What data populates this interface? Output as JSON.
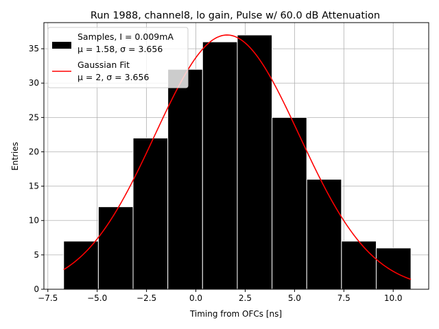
{
  "chart_data": {
    "type": "bar",
    "title": "Run 1988, channel8, lo gain, Pulse w/ 60.0 dB Attenuation",
    "xlabel": "Timing from OFCs [ns]",
    "ylabel": "Entries",
    "xlim": [
      -7.7,
      11.8
    ],
    "ylim": [
      0,
      38.8
    ],
    "grid": true,
    "x_ticks": [
      -7.5,
      -5.0,
      -2.5,
      0.0,
      2.5,
      5.0,
      7.5,
      10.0
    ],
    "x_tick_labels": [
      "−7.5",
      "−5.0",
      "−2.5",
      "0.0",
      "2.5",
      "5.0",
      "7.5",
      "10.0"
    ],
    "y_ticks": [
      0,
      5,
      10,
      15,
      20,
      25,
      30,
      35
    ],
    "y_tick_labels": [
      "0",
      "5",
      "10",
      "15",
      "20",
      "25",
      "30",
      "35"
    ],
    "bins": [
      {
        "left": -6.7,
        "right": -4.94,
        "value": 7
      },
      {
        "left": -4.94,
        "right": -3.18,
        "value": 12
      },
      {
        "left": -3.18,
        "right": -1.42,
        "value": 22
      },
      {
        "left": -1.42,
        "right": 0.34,
        "value": 32
      },
      {
        "left": 0.34,
        "right": 2.1,
        "value": 36
      },
      {
        "left": 2.1,
        "right": 3.86,
        "value": 37
      },
      {
        "left": 3.86,
        "right": 5.62,
        "value": 25
      },
      {
        "left": 5.62,
        "right": 7.38,
        "value": 16
      },
      {
        "left": 7.38,
        "right": 9.14,
        "value": 7
      },
      {
        "left": 9.14,
        "right": 10.9,
        "value": 6
      }
    ],
    "fit": {
      "name": "Gaussian Fit",
      "mu": 1.58,
      "sigma": 3.656,
      "amplitude": 37.0,
      "x_range": [
        -6.7,
        10.9
      ],
      "color": "#ff0000"
    },
    "legend": {
      "position": "top-left",
      "entries": [
        {
          "line1": "Samples, I = 0.009mA",
          "line2": "μ = 1.58, σ = 3.656",
          "color": "#000000",
          "kind": "patch"
        },
        {
          "line1": "Gaussian Fit",
          "line2": "μ = 2, σ = 3.656",
          "color": "#ff0000",
          "kind": "line"
        }
      ]
    },
    "bar_color": "#000000",
    "bar_edge_color": "#ffffff"
  }
}
